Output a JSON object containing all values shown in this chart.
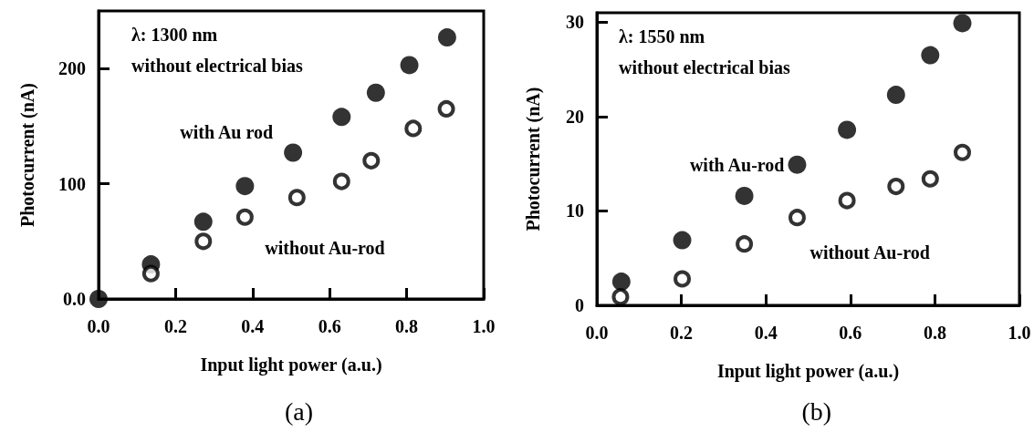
{
  "chart_data": [
    {
      "type": "scatter",
      "title": "(a)",
      "xlabel": "Input light power (a.u.)",
      "ylabel": "Photocurrent (nA)",
      "xlim": [
        0,
        1
      ],
      "xticks": [
        {
          "value": 0,
          "label": "0.0"
        },
        {
          "value": 0.2,
          "label": "0.2"
        },
        {
          "value": 0.4,
          "label": "0.4"
        },
        {
          "value": 0.6,
          "label": "0.6"
        },
        {
          "value": 0.8,
          "label": "0.8"
        },
        {
          "value": 1,
          "label": "1.0"
        }
      ],
      "ylim": [
        0,
        250
      ],
      "yticks": [
        {
          "value": 0,
          "label": "0.0"
        },
        100,
        200
      ],
      "grid": false,
      "legend": false,
      "annotations": [
        "λ: 1300 nm",
        "without electrical bias"
      ],
      "series": [
        {
          "name": "with Au rod",
          "color": "#000000",
          "marker": "circle",
          "x": [
            0,
            0.136,
            0.272,
            0.38,
            0.505,
            0.631,
            0.72,
            0.807,
            0.905
          ],
          "values": [
            0,
            30,
            67,
            98,
            127,
            158,
            179,
            203,
            227
          ]
        },
        {
          "name": "without Au-rod",
          "color": "#000000",
          "marker": "open circle",
          "x": [
            0.136,
            0.272,
            0.38,
            0.515,
            0.631,
            0.708,
            0.817,
            0.903
          ],
          "values": [
            22,
            50,
            71,
            88,
            102,
            120,
            148,
            165
          ]
        }
      ]
    },
    {
      "type": "scatter",
      "title": "(b)",
      "xlabel": "Input light power (a.u.)",
      "ylabel": "Photocurrent (nA)",
      "xlim": [
        0,
        1
      ],
      "xticks": [
        {
          "value": 0,
          "label": "0.0"
        },
        {
          "value": 0.2,
          "label": "0.2"
        },
        {
          "value": 0.4,
          "label": "0.4"
        },
        {
          "value": 0.6,
          "label": "0.6"
        },
        {
          "value": 0.8,
          "label": "0.8"
        },
        {
          "value": 1,
          "label": "1.0"
        }
      ],
      "ylim": [
        0,
        31
      ],
      "yticks": [
        0,
        10,
        20,
        30
      ],
      "grid": false,
      "legend": false,
      "annotations": [
        "λ: 1550 nm",
        "without electrical bias"
      ],
      "series": [
        {
          "name": "with Au-rod",
          "color": "#000000",
          "marker": "circle",
          "x": [
            0.058,
            0.202,
            0.349,
            0.474,
            0.592,
            0.708,
            0.789,
            0.865
          ],
          "values": [
            2.5,
            6.9,
            11.6,
            14.9,
            18.6,
            22.3,
            26.5,
            29.9
          ]
        },
        {
          "name": "without Au-rod",
          "color": "#000000",
          "marker": "open circle",
          "x": [
            0.056,
            0.202,
            0.349,
            0.474,
            0.592,
            0.708,
            0.789,
            0.865
          ],
          "values": [
            0.9,
            2.8,
            6.5,
            9.3,
            11.1,
            12.6,
            13.4,
            16.2
          ]
        }
      ]
    }
  ]
}
